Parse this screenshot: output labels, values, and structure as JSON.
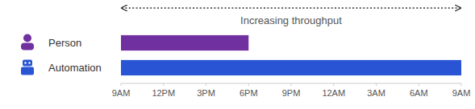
{
  "chart_data": {
    "type": "bar",
    "orientation": "horizontal",
    "title": "Increasing throughput",
    "categories": [
      "Person",
      "Automation"
    ],
    "values": [
      9,
      24
    ],
    "starts": [
      0,
      0
    ],
    "colors": [
      "#7030a0",
      "#2955d4"
    ],
    "xlim": [
      0,
      24
    ],
    "xticks": [
      {
        "value": 0,
        "label": "9AM"
      },
      {
        "value": 3,
        "label": "12PM"
      },
      {
        "value": 6,
        "label": "3PM"
      },
      {
        "value": 9,
        "label": "6PM"
      },
      {
        "value": 12,
        "label": "9PM"
      },
      {
        "value": 15,
        "label": "12AM"
      },
      {
        "value": 18,
        "label": "3AM"
      },
      {
        "value": 21,
        "label": "6AM"
      },
      {
        "value": 24,
        "label": "9AM"
      }
    ],
    "grid": false
  }
}
